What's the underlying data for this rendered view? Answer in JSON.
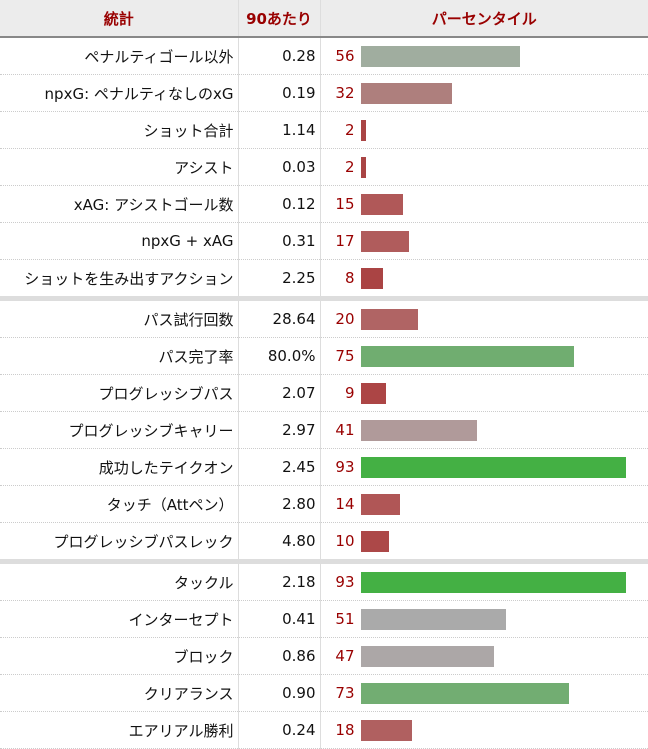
{
  "header": {
    "stat": "統計",
    "per90": "90あたり",
    "percentile": "パーセンタイル"
  },
  "groups": [
    [
      {
        "stat": "ペナルティゴール以外",
        "per90": "0.28",
        "pct": 56,
        "color": "#a0ad9f"
      },
      {
        "stat": "npxG: ペナルティなしのxG",
        "per90": "0.19",
        "pct": 32,
        "color": "#ae7f7d"
      },
      {
        "stat": "ショット合計",
        "per90": "1.14",
        "pct": 2,
        "color": "#a94444"
      },
      {
        "stat": "アシスト",
        "per90": "0.03",
        "pct": 2,
        "color": "#a94444"
      },
      {
        "stat": "xAG: アシストゴール数",
        "per90": "0.12",
        "pct": 15,
        "color": "#b05858"
      },
      {
        "stat": "npxG + xAG",
        "per90": "0.31",
        "pct": 17,
        "color": "#b05c5c"
      },
      {
        "stat": "ショットを生み出すアクション",
        "per90": "2.25",
        "pct": 8,
        "color": "#aa4444"
      }
    ],
    [
      {
        "stat": "パス試行回数",
        "per90": "28.64",
        "pct": 20,
        "color": "#b06464"
      },
      {
        "stat": "パス完了率",
        "per90": "80.0%",
        "pct": 75,
        "color": "#70ad70"
      },
      {
        "stat": "プログレッシブパス",
        "per90": "2.07",
        "pct": 9,
        "color": "#ac4545"
      },
      {
        "stat": "プログレッシブキャリー",
        "per90": "2.97",
        "pct": 41,
        "color": "#b09a9a"
      },
      {
        "stat": "成功したテイクオン",
        "per90": "2.45",
        "pct": 93,
        "color": "#44b044"
      },
      {
        "stat": "タッチ（Attペン）",
        "per90": "2.80",
        "pct": 14,
        "color": "#b05656"
      },
      {
        "stat": "プログレッシブパスレック",
        "per90": "4.80",
        "pct": 10,
        "color": "#ac4848"
      }
    ],
    [
      {
        "stat": "タックル",
        "per90": "2.18",
        "pct": 93,
        "color": "#44b044"
      },
      {
        "stat": "インターセプト",
        "per90": "0.41",
        "pct": 51,
        "color": "#aaaaaa"
      },
      {
        "stat": "ブロック",
        "per90": "0.86",
        "pct": 47,
        "color": "#aca7a7"
      },
      {
        "stat": "クリアランス",
        "per90": "0.90",
        "pct": 73,
        "color": "#72ad72"
      },
      {
        "stat": "エアリアル勝利",
        "per90": "0.24",
        "pct": 18,
        "color": "#b06060"
      }
    ]
  ]
}
